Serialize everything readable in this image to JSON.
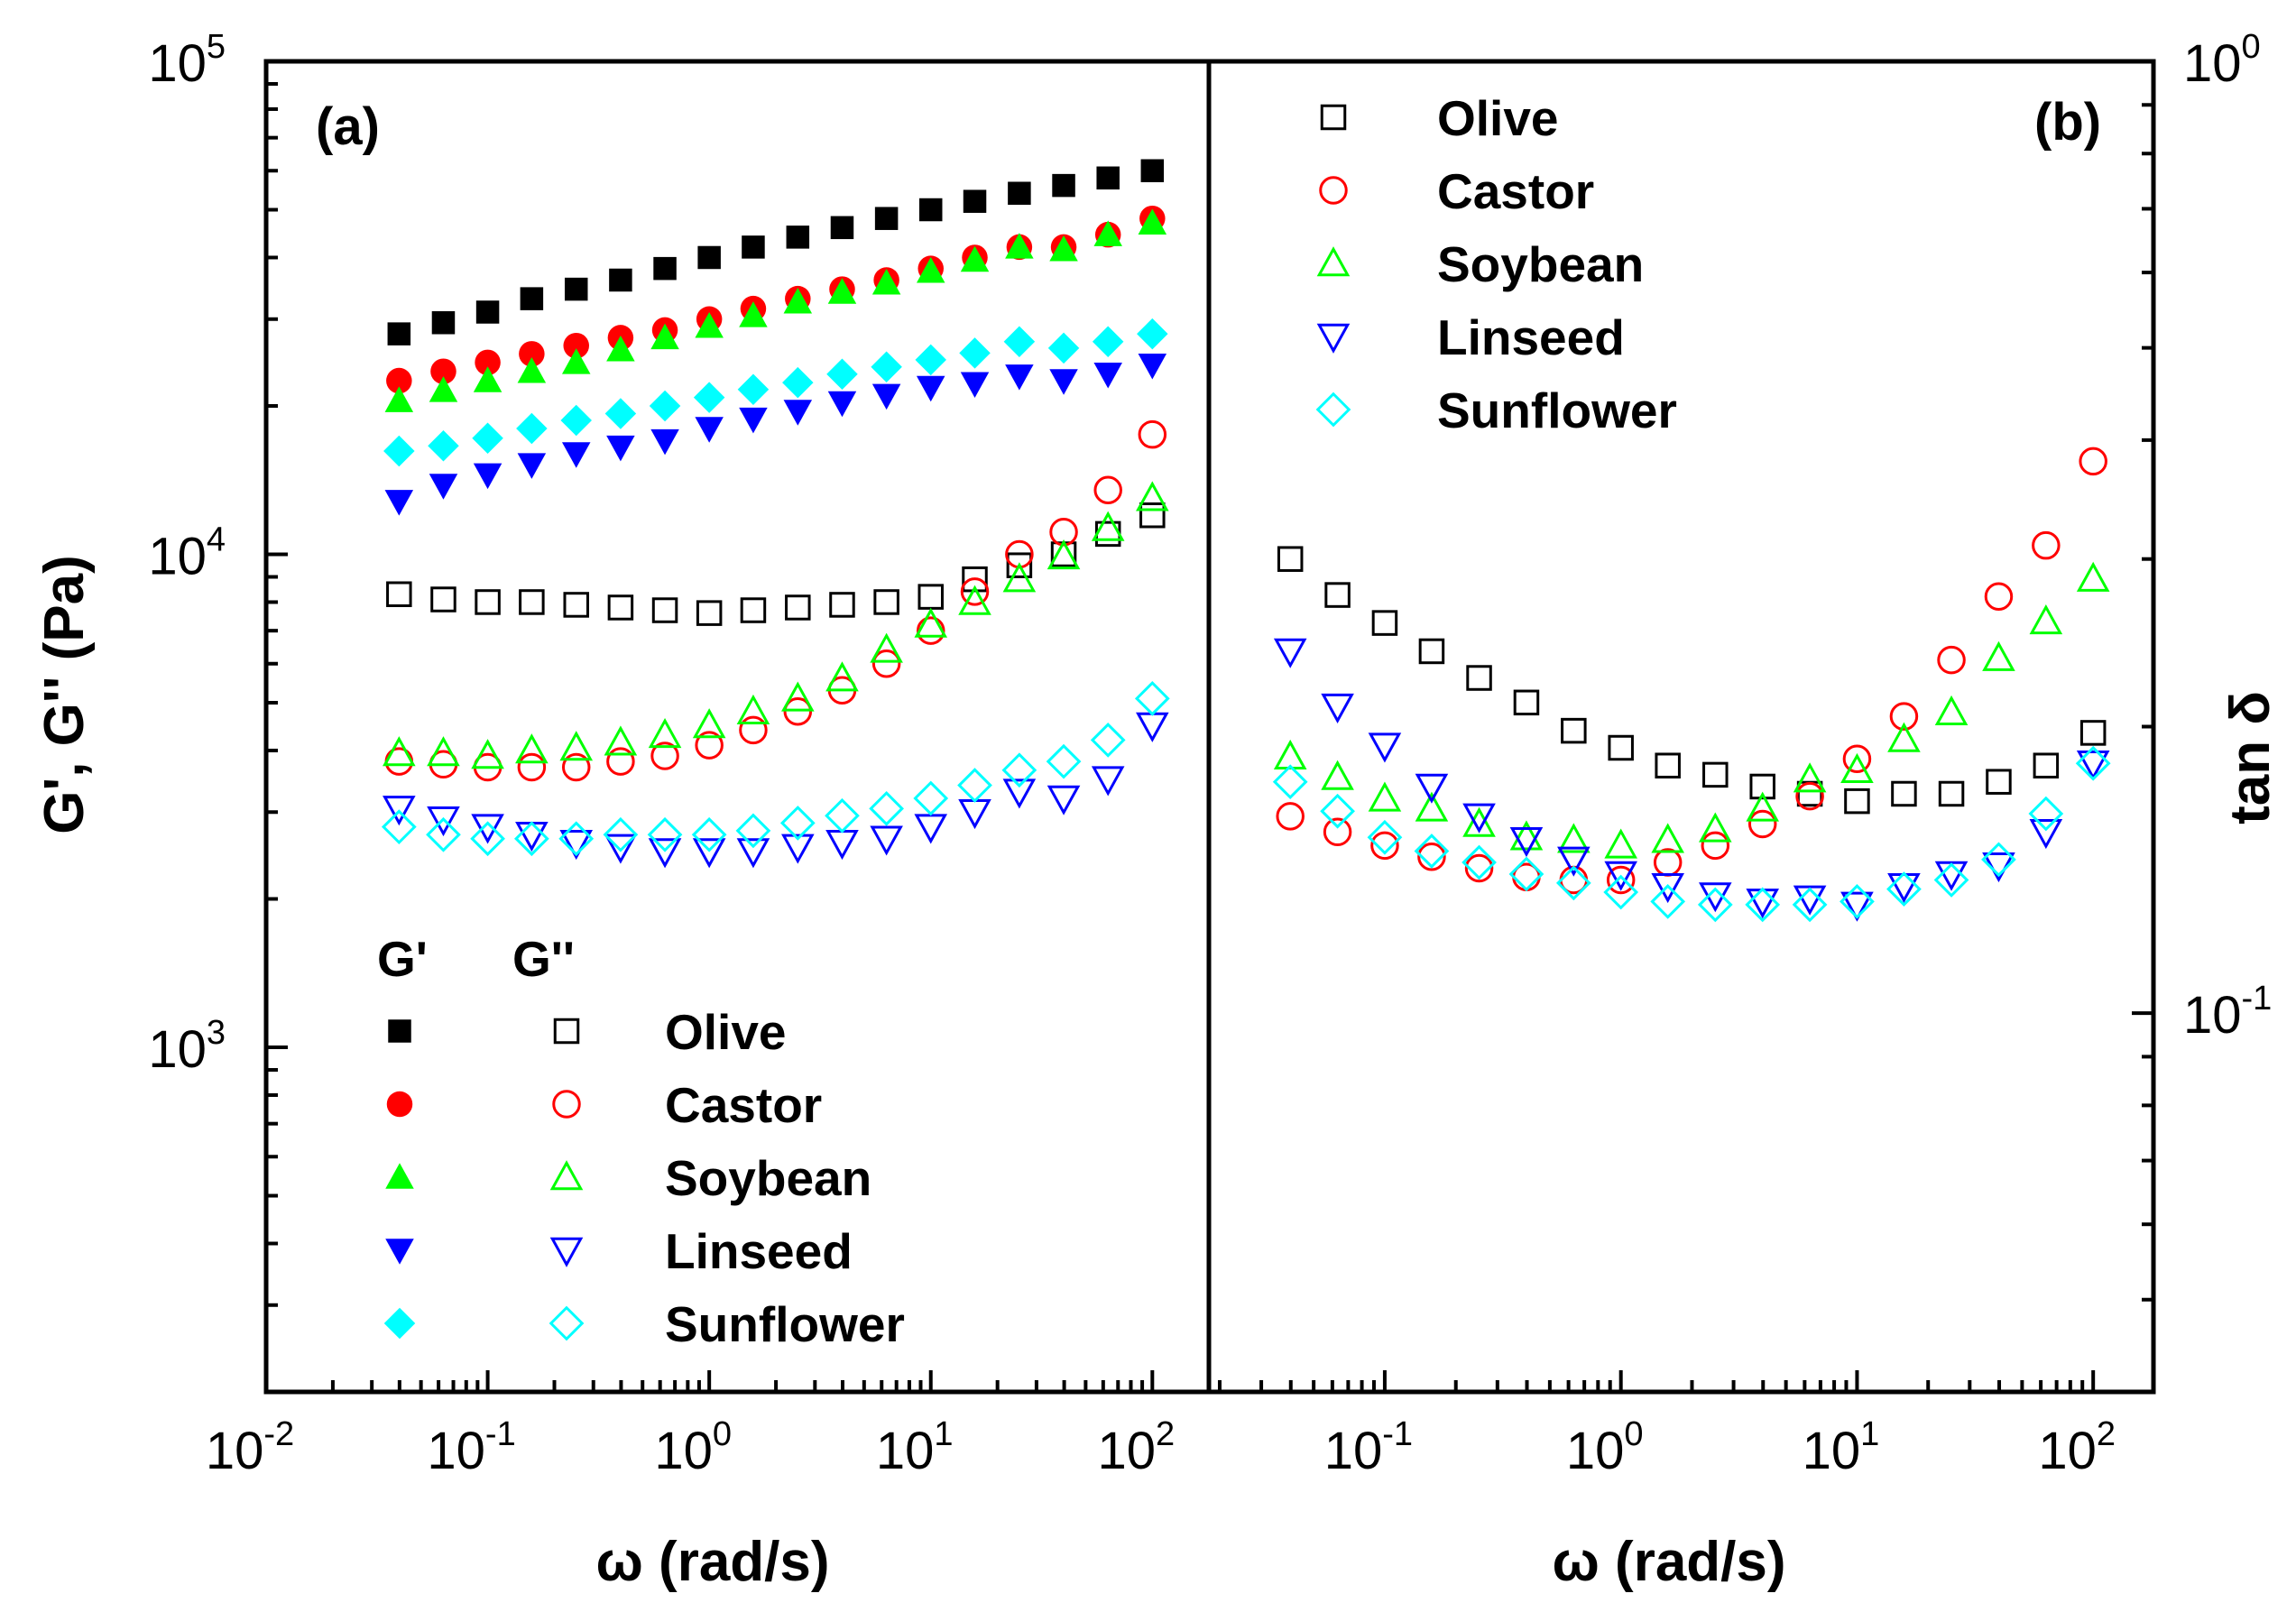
{
  "chart_data": [
    {
      "type": "scatter",
      "panel_label": "(a)",
      "xlabel": "ω (rad/s)",
      "ylabel": "G', G'' (Pa)",
      "xscale": "log",
      "yscale": "log",
      "xlim": [
        0.01,
        180
      ],
      "ylim": [
        200,
        100000
      ],
      "x_ticks": [
        {
          "base": "10",
          "exp": "-2",
          "value": 0.01
        },
        {
          "base": "10",
          "exp": "-1",
          "value": 0.1
        },
        {
          "base": "10",
          "exp": "0",
          "value": 1
        },
        {
          "base": "10",
          "exp": "1",
          "value": 10
        },
        {
          "base": "10",
          "exp": "2",
          "value": 100
        }
      ],
      "y_ticks": [
        {
          "base": "10",
          "exp": "3",
          "value": 1000
        },
        {
          "base": "10",
          "exp": "4",
          "value": 10000
        },
        {
          "base": "10",
          "exp": "5",
          "value": 100000
        }
      ],
      "legend": {
        "position": "bottom-left",
        "col1_header": "G'",
        "col2_header": "G''"
      },
      "x": [
        0.0398,
        0.0631,
        0.1,
        0.158,
        0.251,
        0.398,
        0.631,
        1.0,
        1.58,
        2.51,
        3.98,
        6.31,
        10.0,
        15.8,
        25.1,
        39.8,
        63.1,
        100.0
      ],
      "series": [
        {
          "name": "Olive",
          "measure": "G'",
          "marker": "square",
          "filled": true,
          "color": "#000000",
          "values": [
            28000,
            29500,
            31000,
            33000,
            34500,
            36000,
            38000,
            40000,
            42000,
            44000,
            46000,
            48000,
            50000,
            52000,
            54000,
            56000,
            58000,
            60000
          ]
        },
        {
          "name": "Castor",
          "measure": "G'",
          "marker": "circle",
          "filled": true,
          "color": "#ff0000",
          "values": [
            22500,
            23500,
            24500,
            25500,
            26500,
            27500,
            28500,
            30000,
            31500,
            33000,
            34500,
            36000,
            38000,
            40000,
            42000,
            42000,
            44500,
            48000
          ]
        },
        {
          "name": "Soybean",
          "measure": "G'",
          "marker": "triangle-up",
          "filled": true,
          "color": "#00ff00",
          "values": [
            20500,
            21500,
            22500,
            23500,
            24500,
            26000,
            27500,
            29000,
            30500,
            32500,
            34000,
            35500,
            37500,
            39500,
            42000,
            41500,
            44500,
            47000
          ]
        },
        {
          "name": "Linseed",
          "measure": "G'",
          "marker": "triangle-down",
          "filled": true,
          "color": "#0000ff",
          "values": [
            12800,
            13800,
            14500,
            15200,
            16000,
            16500,
            17000,
            18000,
            18800,
            19500,
            20300,
            21000,
            21800,
            22200,
            23000,
            22500,
            23200,
            24200
          ]
        },
        {
          "name": "Sunflower",
          "measure": "G'",
          "marker": "diamond",
          "filled": true,
          "color": "#00ffff",
          "values": [
            16200,
            16600,
            17200,
            18000,
            18700,
            19300,
            20000,
            20800,
            21600,
            22300,
            23200,
            24000,
            24800,
            25600,
            27000,
            26200,
            27000,
            28000
          ]
        },
        {
          "name": "Olive",
          "measure": "G''",
          "marker": "square",
          "filled": false,
          "color": "#000000",
          "values": [
            8300,
            8100,
            8000,
            8000,
            7900,
            7800,
            7700,
            7600,
            7700,
            7800,
            7900,
            8000,
            8200,
            8900,
            9500,
            10000,
            11000,
            12000
          ]
        },
        {
          "name": "Castor",
          "measure": "G''",
          "marker": "circle",
          "filled": false,
          "color": "#ff0000",
          "values": [
            3800,
            3750,
            3700,
            3700,
            3700,
            3800,
            3900,
            4100,
            4400,
            4800,
            5300,
            6000,
            7000,
            8400,
            10000,
            11100,
            13500,
            17500
          ]
        },
        {
          "name": "Soybean",
          "measure": "G''",
          "marker": "triangle-up",
          "filled": false,
          "color": "#00ff00",
          "values": [
            3950,
            3950,
            3900,
            4000,
            4050,
            4150,
            4300,
            4500,
            4800,
            5100,
            5600,
            6400,
            7200,
            8000,
            8900,
            9900,
            11300,
            13000
          ]
        },
        {
          "name": "Linseed",
          "measure": "G''",
          "marker": "triangle-down",
          "filled": false,
          "color": "#0000ff",
          "values": [
            3050,
            2900,
            2800,
            2700,
            2600,
            2550,
            2500,
            2500,
            2500,
            2550,
            2600,
            2650,
            2800,
            3000,
            3300,
            3200,
            3500,
            4500
          ]
        },
        {
          "name": "Sunflower",
          "measure": "G''",
          "marker": "diamond",
          "filled": false,
          "color": "#00ffff",
          "values": [
            2800,
            2700,
            2650,
            2650,
            2650,
            2700,
            2700,
            2700,
            2750,
            2850,
            2950,
            3050,
            3200,
            3400,
            3650,
            3800,
            4200,
            5100
          ]
        }
      ]
    },
    {
      "type": "scatter",
      "panel_label": "(b)",
      "xlabel": "ω (rad/s)",
      "ylabel": "tan δ",
      "xscale": "log",
      "yscale": "log",
      "xlim": [
        0.018,
        180
      ],
      "ylim": [
        0.04,
        1.0
      ],
      "x_ticks": [
        {
          "base": "10",
          "exp": "-1",
          "value": 0.1
        },
        {
          "base": "10",
          "exp": "0",
          "value": 1
        },
        {
          "base": "10",
          "exp": "1",
          "value": 10
        },
        {
          "base": "10",
          "exp": "2",
          "value": 100
        }
      ],
      "y_ticks": [
        {
          "base": "10",
          "exp": "-1",
          "value": 0.1
        },
        {
          "base": "10",
          "exp": "0",
          "value": 1
        }
      ],
      "legend": {
        "position": "top-left"
      },
      "x": [
        0.0398,
        0.0631,
        0.1,
        0.158,
        0.251,
        0.398,
        0.631,
        1.0,
        1.58,
        2.51,
        3.98,
        6.31,
        10.0,
        15.8,
        25.1,
        39.8,
        63.1,
        100.0
      ],
      "series": [
        {
          "name": "Olive",
          "marker": "square",
          "filled": false,
          "color": "#000000",
          "values": [
            0.3,
            0.275,
            0.257,
            0.24,
            0.225,
            0.212,
            0.198,
            0.19,
            0.182,
            0.178,
            0.173,
            0.17,
            0.167,
            0.17,
            0.17,
            0.175,
            0.182,
            0.197
          ]
        },
        {
          "name": "Castor",
          "marker": "circle",
          "filled": false,
          "color": "#ff0000",
          "values": [
            0.161,
            0.155,
            0.15,
            0.146,
            0.142,
            0.139,
            0.138,
            0.138,
            0.144,
            0.15,
            0.158,
            0.169,
            0.185,
            0.205,
            0.235,
            0.274,
            0.31,
            0.38
          ]
        },
        {
          "name": "Soybean",
          "marker": "triangle-up",
          "filled": false,
          "color": "#00ff00",
          "values": [
            0.186,
            0.177,
            0.168,
            0.164,
            0.158,
            0.153,
            0.152,
            0.15,
            0.152,
            0.156,
            0.164,
            0.176,
            0.18,
            0.194,
            0.207,
            0.236,
            0.258,
            0.286
          ]
        },
        {
          "name": "Linseed",
          "marker": "triangle-down",
          "filled": false,
          "color": "#0000ff",
          "values": [
            0.24,
            0.21,
            0.191,
            0.173,
            0.161,
            0.152,
            0.145,
            0.14,
            0.136,
            0.133,
            0.131,
            0.132,
            0.13,
            0.136,
            0.14,
            0.143,
            0.155,
            0.183
          ]
        },
        {
          "name": "Sunflower",
          "marker": "diamond",
          "filled": false,
          "color": "#00ffff",
          "values": [
            0.175,
            0.163,
            0.153,
            0.148,
            0.144,
            0.14,
            0.137,
            0.134,
            0.131,
            0.13,
            0.13,
            0.13,
            0.131,
            0.135,
            0.138,
            0.145,
            0.162,
            0.183
          ]
        }
      ]
    }
  ]
}
